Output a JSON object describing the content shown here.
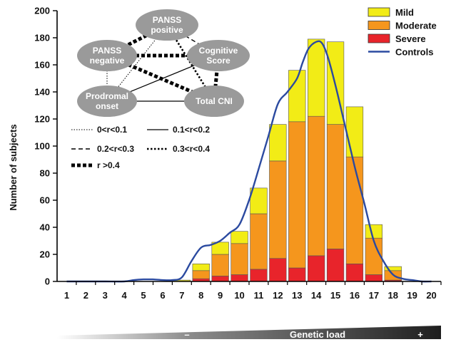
{
  "colors": {
    "mild": "#f2ec16",
    "moderate": "#f5961d",
    "severe": "#e8242b",
    "controls": "#2b4aa0",
    "node": "#9a9a9a"
  },
  "chart_data": {
    "type": "bar",
    "stacked": true,
    "ylabel": "Number of subjects",
    "ylim": [
      0,
      200
    ],
    "yticks": [
      "0",
      "20",
      "40",
      "60",
      "80",
      "100",
      "120",
      "140",
      "160",
      "180",
      "200"
    ],
    "categories": [
      "1",
      "2",
      "3",
      "4",
      "5",
      "6",
      "7",
      "8",
      "9",
      "10",
      "11",
      "12",
      "13",
      "14",
      "15",
      "16",
      "17",
      "18",
      "19",
      "20"
    ],
    "series": [
      {
        "name": "Severe",
        "color_key": "severe",
        "values": [
          0,
          0,
          0,
          0,
          0,
          0,
          0,
          2,
          4,
          5,
          9,
          17,
          10,
          19,
          24,
          13,
          5,
          1,
          0,
          0
        ]
      },
      {
        "name": "Moderate",
        "color_key": "moderate",
        "values": [
          0,
          0,
          0,
          0,
          0,
          0,
          0,
          6,
          16,
          23,
          41,
          72,
          108,
          103,
          92,
          79,
          27,
          7,
          0,
          0
        ]
      },
      {
        "name": "Mild",
        "color_key": "mild",
        "values": [
          0,
          0,
          0,
          0,
          0,
          0,
          1,
          5,
          9,
          9,
          19,
          27,
          38,
          57,
          61,
          37,
          10,
          3,
          0,
          0
        ]
      }
    ],
    "controls": {
      "name": "Controls",
      "x": [
        1,
        2,
        3,
        4,
        4.5,
        5,
        5.5,
        6,
        6.5,
        7,
        7.5,
        8,
        8.5,
        9,
        9.5,
        10,
        10.5,
        11,
        11.5,
        12,
        12.5,
        13,
        13.3,
        13.6,
        14,
        14.3,
        14.6,
        15,
        15.5,
        16,
        16.5,
        17,
        17.5,
        18,
        18.5,
        19,
        19.5,
        20
      ],
      "y": [
        0,
        0,
        0,
        0,
        1,
        1.5,
        1.5,
        1,
        1,
        3,
        15,
        25,
        27,
        30,
        36,
        42,
        60,
        83,
        107,
        131,
        140,
        150,
        162,
        172,
        177,
        176,
        166,
        145,
        115,
        85,
        58,
        30,
        15,
        5,
        2,
        1,
        0,
        0
      ]
    },
    "legend": [
      "Mild",
      "Moderate",
      "Severe",
      "Controls"
    ],
    "legend_position": "top-right",
    "gradient_axis": {
      "label": "Genetic load",
      "minus": "–",
      "plus": "+"
    }
  },
  "network": {
    "nodes": [
      {
        "id": "pos",
        "lines": [
          "PANSS",
          "positive"
        ]
      },
      {
        "id": "neg",
        "lines": [
          "PANSS",
          "negative"
        ]
      },
      {
        "id": "cog",
        "lines": [
          "Cognitive",
          "Score"
        ]
      },
      {
        "id": "pro",
        "lines": [
          "Prodromal",
          "onset"
        ]
      },
      {
        "id": "cni",
        "lines": [
          "Total CNI"
        ]
      }
    ],
    "edges": [
      {
        "a": "pos",
        "b": "neg",
        "style": "r >0.4"
      },
      {
        "a": "pos",
        "b": "cog",
        "style": "0.2<r<0.3"
      },
      {
        "a": "pos",
        "b": "pro",
        "style": "0<r<0.1"
      },
      {
        "a": "pos",
        "b": "cni",
        "style": "0.3<r<0.4"
      },
      {
        "a": "neg",
        "b": "cog",
        "style": "r >0.4"
      },
      {
        "a": "neg",
        "b": "pro",
        "style": "0<r<0.1"
      },
      {
        "a": "neg",
        "b": "cni",
        "style": "r >0.4"
      },
      {
        "a": "cog",
        "b": "pro",
        "style": "0.1<r<0.2"
      },
      {
        "a": "cog",
        "b": "cni",
        "style": "r >0.4"
      },
      {
        "a": "pro",
        "b": "cni",
        "style": "0.1<r<0.2"
      }
    ],
    "key": [
      {
        "label": "0<r<0.1",
        "style": "0<r<0.1"
      },
      {
        "label": "0.1<r<0.2",
        "style": "0.1<r<0.2"
      },
      {
        "label": "0.2<r<0.3",
        "style": "0.2<r<0.3"
      },
      {
        "label": "0.3<r<0.4",
        "style": "0.3<r<0.4"
      },
      {
        "label": "r >0.4",
        "style": "r >0.4"
      }
    ]
  }
}
